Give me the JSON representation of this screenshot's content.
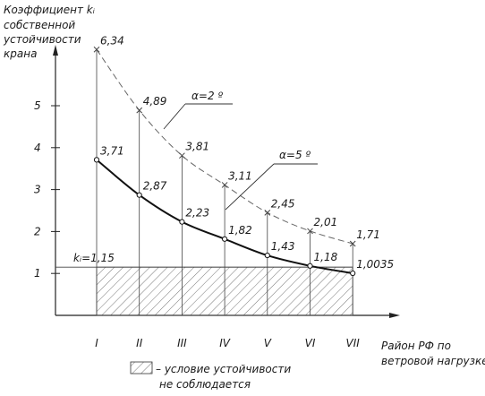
{
  "chart_data": {
    "type": "line",
    "ylabel": [
      "Коэффициент kᵢ",
      "собственной",
      "устойчивости",
      "крана"
    ],
    "xlabel": [
      "Район РФ по",
      "ветровой нагрузке"
    ],
    "categories": [
      "I",
      "II",
      "III",
      "IV",
      "V",
      "VI",
      "VII"
    ],
    "yticks": [
      "1",
      "2",
      "3",
      "4",
      "5"
    ],
    "ylim": [
      0,
      6.5
    ],
    "series": [
      {
        "name": "α=2 º",
        "style": "dashed",
        "values": [
          6.34,
          4.89,
          3.81,
          3.11,
          2.45,
          2.01,
          1.71
        ],
        "labels": [
          "6,34",
          "4,89",
          "3,81",
          "3,11",
          "2,45",
          "2,01",
          "1,71"
        ]
      },
      {
        "name": "α=5 º",
        "style": "solid",
        "values": [
          3.71,
          2.87,
          2.23,
          1.82,
          1.43,
          1.18,
          1.0035
        ],
        "labels": [
          "3,71",
          "2,87",
          "2,23",
          "1,82",
          "1,43",
          "1,18",
          "1,0035"
        ]
      }
    ],
    "threshold": {
      "value": 1.15,
      "label": "kᵢ=1,15"
    },
    "legend": {
      "text": [
        "– условие устойчивости",
        "не соблюдается"
      ]
    }
  }
}
